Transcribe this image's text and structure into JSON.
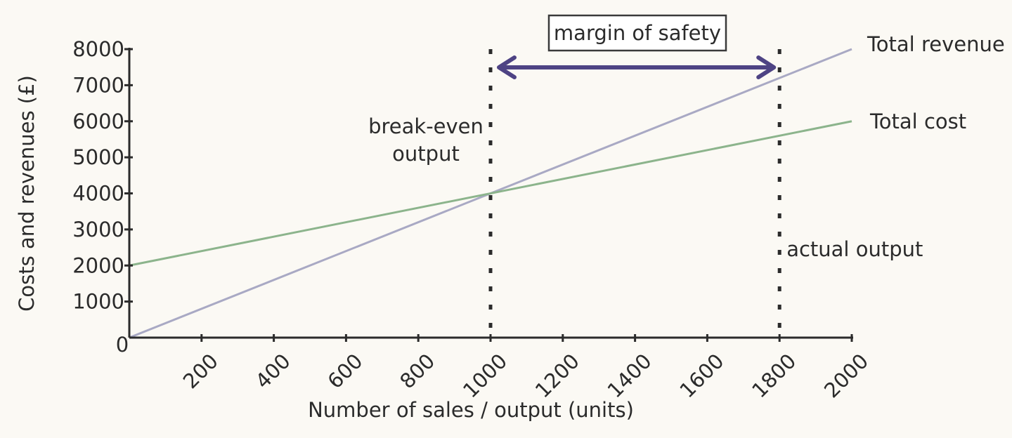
{
  "chart_data": {
    "type": "line",
    "xlabel": "Number of sales / output (units)",
    "ylabel": "Costs and revenues (£)",
    "xlim": [
      0,
      2000
    ],
    "ylim": [
      0,
      8000
    ],
    "x_ticks": [
      "200",
      "400",
      "600",
      "800",
      "1000",
      "1200",
      "1400",
      "1600",
      "1800",
      "2000"
    ],
    "y_ticks": [
      "1000",
      "2000",
      "3000",
      "4000",
      "5000",
      "6000",
      "7000",
      "8000"
    ],
    "origin_label": "0",
    "grid": false,
    "series": [
      {
        "name": "Total revenue",
        "color": "#a9a9c4",
        "x": [
          0,
          2000
        ],
        "y": [
          0,
          8000
        ]
      },
      {
        "name": "Total cost",
        "color": "#8cb48c",
        "x": [
          0,
          2000
        ],
        "y": [
          2000,
          6000
        ]
      }
    ],
    "annotations": {
      "break_even": {
        "label_line1": "break-even",
        "label_line2": "output",
        "x": 1000
      },
      "actual_output": {
        "label": "actual output",
        "x": 1800
      },
      "margin_of_safety": {
        "label": "margin of safety",
        "from": 1000,
        "to": 1800,
        "arrow_color": "#4e4384"
      }
    }
  }
}
